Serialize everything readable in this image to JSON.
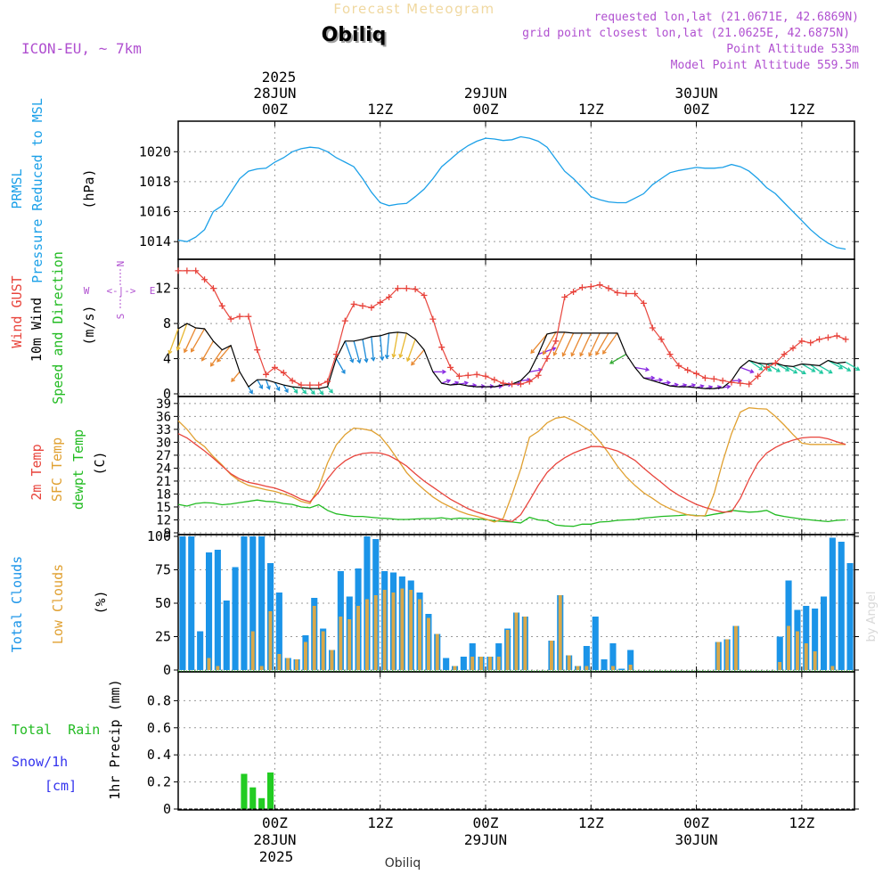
{
  "header": {
    "title": "Forecast Meteogram",
    "station": "Obiliq",
    "model": "ICON-EU, ~ 7km",
    "requested": "requested lon,lat (21.0671E, 42.6869N)",
    "gridpoint": "grid point closest lon,lat (21.0625E, 42.6875N)",
    "alt": "Point Altitude 533m",
    "model_alt": "Model Point Altitude 559.5m",
    "credit": "by Angel",
    "footer_station": "Obiliq"
  },
  "time_axis": {
    "top_year": "2025",
    "bottom_year": "2025",
    "ticks": [
      {
        "hour": 0,
        "label": "00Z",
        "date": "28JUN"
      },
      {
        "hour": 12,
        "label": "12Z",
        "date": ""
      },
      {
        "hour": 24,
        "label": "00Z",
        "date": "29JUN"
      },
      {
        "hour": 36,
        "label": "12Z",
        "date": ""
      },
      {
        "hour": 48,
        "label": "00Z",
        "date": "30JUN"
      },
      {
        "hour": 60,
        "label": "12Z",
        "date": ""
      }
    ],
    "range_hours": [
      -11,
      66
    ]
  },
  "panel_labels": {
    "pressure": [
      "PRMSL",
      "Pressure Reduced to MSL"
    ],
    "pressure_unit": "(hPa)",
    "wind_gust": "Wind GUST",
    "wind_10m": "10m Wind",
    "wind_speed_dir": "Speed and Direction",
    "wind_unit": "(m/s)",
    "compass": {
      "n": "N",
      "s": "S",
      "w": "W",
      "e": "E",
      "arrow": "<-|->"
    },
    "temp_2m": "2m Temp",
    "temp_sfc": "SFC Temp",
    "temp_dew": "dewpt Temp",
    "temp_unit": "(C)",
    "total_clouds": "Total Clouds",
    "low_clouds": "Low Clouds",
    "cloud_unit": "(%)",
    "precip": "1hr Precip (mm)",
    "total_rain": "Total  Rain",
    "snow": "Snow/1h",
    "snow_unit": "[cm]"
  },
  "colors": {
    "pressure": "#1ba0e8",
    "gust": "#e8443c",
    "wind": "#000000",
    "temp_2m": "#e8443c",
    "temp_sfc": "#e0a030",
    "dewpt": "#22bb22",
    "total_clouds": "#1b94e8",
    "low_clouds": "#d9a84a",
    "rain": "#22cc22",
    "violet": "#b050d0",
    "label_green": "#22bb22",
    "label_blue": "#1b94e8",
    "label_orange": "#e0a030",
    "label_red": "#e8443c",
    "snow_label": "#3333ee"
  },
  "chart_data": [
    {
      "type": "line",
      "name": "pressure",
      "ylim": [
        1013,
        1021.8
      ],
      "yticks": [
        1014,
        1016,
        1018,
        1020
      ],
      "x": [
        -11,
        -10,
        -9,
        -8,
        -7,
        -6,
        -5,
        -4,
        -3,
        -2,
        -1,
        0,
        1,
        2,
        3,
        4,
        5,
        6,
        7,
        8,
        9,
        10,
        11,
        12,
        13,
        14,
        15,
        16,
        17,
        18,
        19,
        20,
        21,
        22,
        23,
        24,
        25,
        26,
        27,
        28,
        29,
        30,
        31,
        32,
        33,
        34,
        35,
        36,
        37,
        38,
        39,
        40,
        41,
        42,
        43,
        44,
        45,
        46,
        47,
        48,
        49,
        50,
        51,
        52,
        53,
        54,
        55,
        56,
        57,
        58,
        59,
        60,
        61,
        62,
        63,
        64,
        65
      ],
      "values": [
        1014.1,
        1014.0,
        1014.3,
        1014.8,
        1016.0,
        1016.4,
        1017.3,
        1018.2,
        1018.7,
        1018.85,
        1018.9,
        1019.3,
        1019.6,
        1020.0,
        1020.2,
        1020.3,
        1020.25,
        1020.0,
        1019.6,
        1019.3,
        1019.0,
        1018.2,
        1017.3,
        1016.6,
        1016.4,
        1016.5,
        1016.55,
        1017.0,
        1017.5,
        1018.2,
        1019.0,
        1019.5,
        1020.0,
        1020.4,
        1020.7,
        1020.9,
        1020.85,
        1020.75,
        1020.8,
        1021.0,
        1020.9,
        1020.7,
        1020.3,
        1019.5,
        1018.7,
        1018.2,
        1017.6,
        1017.0,
        1016.8,
        1016.65,
        1016.6,
        1016.6,
        1016.9,
        1017.2,
        1017.8,
        1018.2,
        1018.6,
        1018.75,
        1018.85,
        1018.95,
        1018.9,
        1018.9,
        1018.95,
        1019.15,
        1019.0,
        1018.7,
        1018.2,
        1017.6,
        1017.2,
        1016.6,
        1016.0,
        1015.4,
        1014.8,
        1014.3,
        1013.9,
        1013.6,
        1013.5
      ]
    },
    {
      "type": "line",
      "name": "wind",
      "ylim": [
        0,
        15
      ],
      "yticks": [
        0,
        4,
        8,
        12
      ],
      "gust": {
        "x": [
          -11,
          -10,
          -9,
          -8,
          -7,
          -6,
          -5,
          -4,
          -3,
          -2,
          -1,
          0,
          1,
          2,
          3,
          4,
          5,
          6,
          7,
          8,
          9,
          10,
          11,
          12,
          13,
          14,
          15,
          16,
          17,
          18,
          19,
          20,
          21,
          22,
          23,
          24,
          25,
          26,
          27,
          28,
          29,
          30,
          31,
          32,
          33,
          34,
          35,
          36,
          37,
          38,
          39,
          40,
          41,
          42,
          43,
          44,
          45,
          46,
          47,
          48,
          49,
          50,
          51,
          52,
          53,
          54,
          55,
          56,
          57,
          58,
          59,
          60,
          61,
          62,
          63,
          64,
          65
        ],
        "values": [
          14,
          14,
          14,
          13,
          12,
          10,
          8.5,
          8.8,
          8.8,
          5,
          2.2,
          3,
          2.4,
          1.5,
          1,
          1,
          1,
          1.4,
          4.5,
          8.3,
          10.2,
          10,
          9.8,
          10.4,
          11,
          12,
          12,
          11.9,
          11.2,
          8.5,
          5.3,
          3,
          2,
          2.1,
          2.2,
          2,
          1.6,
          1.2,
          1.1,
          1.1,
          1.4,
          2.1,
          4,
          6,
          11,
          11.6,
          12.1,
          12.2,
          12.4,
          12,
          11.5,
          11.4,
          11.4,
          10.3,
          7.5,
          6.2,
          4.5,
          3.2,
          2.7,
          2.3,
          1.8,
          1.7,
          1.5,
          1.3,
          1.2,
          1.1,
          2,
          3,
          3.5,
          4.5,
          5.2,
          6,
          5.8,
          6.2,
          6.4,
          6.6,
          6.2
        ]
      },
      "speed": {
        "x": [
          -11,
          -10,
          -9,
          -8,
          -7,
          -6,
          -5,
          -4,
          -3,
          -2,
          -1,
          0,
          1,
          2,
          3,
          4,
          5,
          6,
          7,
          8,
          9,
          10,
          11,
          12,
          13,
          14,
          15,
          16,
          17,
          18,
          19,
          20,
          21,
          22,
          23,
          24,
          25,
          26,
          27,
          28,
          29,
          30,
          31,
          32,
          33,
          34,
          35,
          36,
          37,
          38,
          39,
          40,
          41,
          42,
          43,
          44,
          45,
          46,
          47,
          48,
          49,
          50,
          51,
          52,
          53,
          54,
          55,
          56,
          57,
          58,
          59,
          60,
          61,
          62,
          63,
          64,
          65
        ],
        "values": [
          7.4,
          8,
          7.5,
          7.4,
          6,
          5,
          5.5,
          2.5,
          0.8,
          1.6,
          1.6,
          1.3,
          1,
          0.8,
          0.7,
          0.6,
          0.6,
          0.8,
          4,
          6,
          6,
          6.2,
          6.5,
          6.6,
          6.9,
          7,
          6.9,
          6.2,
          5,
          2.5,
          1.2,
          1,
          1.1,
          0.9,
          0.8,
          0.8,
          0.8,
          1,
          1.1,
          1.5,
          2.5,
          4.5,
          6.8,
          7,
          7,
          6.9,
          6.9,
          6.9,
          6.9,
          6.9,
          6.9,
          4.5,
          3,
          1.8,
          1.5,
          1.2,
          0.9,
          0.8,
          0.8,
          0.7,
          0.6,
          0.6,
          0.7,
          1.5,
          3,
          3.8,
          3.5,
          3.4,
          3.5,
          3.2,
          3.1,
          3.4,
          3.3,
          3.2,
          3.8,
          3.5,
          3.6
        ]
      },
      "direction_deg": [
        20,
        20,
        25,
        30,
        30,
        35,
        40,
        40,
        330,
        330,
        340,
        330,
        330,
        320,
        320,
        320,
        325,
        320,
        330,
        340,
        345,
        350,
        355,
        355,
        5,
        10,
        15,
        20,
        40,
        270,
        250,
        250,
        260,
        265,
        265,
        265,
        265,
        265,
        265,
        265,
        260,
        250,
        40,
        30,
        25,
        25,
        25,
        25,
        25,
        30,
        35,
        60,
        280,
        270,
        265,
        265,
        260,
        255,
        255,
        255,
        255,
        255,
        260,
        270,
        290,
        305,
        300,
        300,
        300,
        300,
        300,
        300,
        305,
        300,
        300,
        300,
        300
      ]
    },
    {
      "type": "line",
      "name": "temperature",
      "ylim": [
        9,
        40
      ],
      "yticks": [
        9,
        12,
        15,
        18,
        21,
        24,
        27,
        30,
        33,
        36,
        39
      ],
      "x": [
        -11,
        -10,
        -9,
        -8,
        -7,
        -6,
        -5,
        -4,
        -3,
        -2,
        -1,
        0,
        1,
        2,
        3,
        4,
        5,
        6,
        7,
        8,
        9,
        10,
        11,
        12,
        13,
        14,
        15,
        16,
        17,
        18,
        19,
        20,
        21,
        22,
        23,
        24,
        25,
        26,
        27,
        28,
        29,
        30,
        31,
        32,
        33,
        34,
        35,
        36,
        37,
        38,
        39,
        40,
        41,
        42,
        43,
        44,
        45,
        46,
        47,
        48,
        49,
        50,
        51,
        52,
        53,
        54,
        55,
        56,
        57,
        58,
        59,
        60,
        61,
        62,
        63,
        64,
        65
      ],
      "t2m": [
        32,
        31,
        29.5,
        28,
        26.3,
        24.5,
        22.7,
        21.5,
        20.7,
        20.3,
        19.8,
        19.4,
        18.7,
        17.8,
        16.8,
        16.2,
        18.4,
        21.5,
        24,
        25.7,
        26.8,
        27.4,
        27.6,
        27.5,
        26.9,
        25.8,
        24.5,
        22.7,
        21,
        19.6,
        18.2,
        16.8,
        15.7,
        14.6,
        13.8,
        13.2,
        12.6,
        12,
        11.6,
        13.2,
        16.5,
        20,
        23,
        25,
        26.4,
        27.5,
        28.3,
        29,
        29,
        28.6,
        28,
        27,
        25.8,
        24,
        22.3,
        20.7,
        19,
        17.7,
        16.6,
        15.6,
        14.9,
        14.3,
        13.8,
        13.9,
        17,
        21.4,
        25.2,
        27.5,
        28.8,
        29.8,
        30.5,
        31,
        31.2,
        31.2,
        30.8,
        30.1,
        29.5
      ],
      "tsfc": [
        35,
        33,
        30.5,
        29,
        26.7,
        24.7,
        22.5,
        21,
        20,
        19.5,
        19,
        18.6,
        18,
        17.3,
        16.3,
        15.8,
        19.5,
        25.2,
        29.4,
        31.8,
        33.3,
        33.1,
        32.7,
        31.4,
        28.9,
        26,
        23,
        20.8,
        19,
        17.3,
        16,
        15,
        14,
        13.3,
        12.8,
        12.2,
        11.5,
        12.3,
        17.8,
        23.8,
        31.2,
        32.5,
        34.5,
        35.6,
        35.9,
        35,
        33.8,
        32.5,
        30.2,
        27.5,
        24.5,
        22,
        20,
        18.3,
        17,
        15.6,
        14.6,
        13.8,
        13.2,
        12.9,
        13,
        18,
        25.5,
        32,
        37,
        38,
        37.8,
        37.7,
        36,
        34,
        31.8,
        29.8,
        29.5,
        29.5,
        29.5,
        29.5,
        29.5
      ],
      "dewpt": [
        15.6,
        15.2,
        15.8,
        16,
        15.9,
        15.5,
        15.7,
        16,
        16.3,
        16.6,
        16.3,
        16.2,
        15.8,
        15.6,
        15,
        14.8,
        15.5,
        14.2,
        13.4,
        13.1,
        12.8,
        12.8,
        12.6,
        12.4,
        12.3,
        12.1,
        12.1,
        12.2,
        12.3,
        12.3,
        12.5,
        12.2,
        12.4,
        12.3,
        12.2,
        12.1,
        11.8,
        11.6,
        11.5,
        11.3,
        12.6,
        12,
        11.8,
        10.8,
        10.6,
        10.5,
        11,
        11,
        11.5,
        11.6,
        11.9,
        12,
        12.1,
        12.4,
        12.6,
        12.8,
        12.9,
        13,
        13.2,
        13,
        12.9,
        13.3,
        13.6,
        14.2,
        14,
        13.8,
        13.9,
        14.2,
        13.2,
        12.8,
        12.5,
        12.2,
        12,
        11.8,
        11.6,
        11.9,
        12
      ]
    },
    {
      "type": "bar",
      "name": "clouds",
      "ylim": [
        0,
        100
      ],
      "yticks": [
        0,
        25,
        50,
        75,
        100
      ],
      "x": [
        -11,
        -10,
        -9,
        -8,
        -7,
        -6,
        -5,
        -4,
        -3,
        -2,
        -1,
        0,
        1,
        2,
        3,
        4,
        5,
        6,
        7,
        8,
        9,
        10,
        11,
        12,
        13,
        14,
        15,
        16,
        17,
        18,
        19,
        20,
        21,
        22,
        23,
        24,
        25,
        26,
        27,
        28,
        29,
        30,
        31,
        32,
        33,
        34,
        35,
        36,
        37,
        38,
        39,
        40,
        41,
        42,
        43,
        44,
        45,
        46,
        47,
        48,
        49,
        50,
        51,
        52,
        53,
        54,
        55,
        56,
        57,
        58,
        59,
        60,
        61,
        62,
        63,
        64,
        65
      ],
      "total": [
        100,
        100,
        29,
        88,
        90,
        52,
        77,
        100,
        100,
        100,
        80,
        58,
        9,
        8,
        26,
        54,
        31,
        15,
        74,
        55,
        76,
        100,
        98,
        74,
        73,
        70,
        67,
        58,
        42,
        27,
        9,
        3,
        10,
        20,
        10,
        10,
        20,
        31,
        43,
        40,
        0,
        0,
        22,
        56,
        11,
        3,
        18,
        40,
        8,
        20,
        1,
        15,
        0,
        0,
        0,
        0,
        0,
        0,
        0,
        0,
        0,
        21,
        23,
        33,
        0,
        0,
        0,
        0,
        25,
        67,
        45,
        48,
        46,
        55,
        99,
        96,
        80
      ],
      "low": [
        0,
        0,
        0,
        9,
        3,
        0,
        0,
        0,
        29,
        3,
        44,
        12,
        9,
        8,
        21,
        48,
        29,
        15,
        40,
        38,
        48,
        53,
        56,
        60,
        58,
        61,
        60,
        53,
        39,
        27,
        0,
        3,
        0,
        10,
        10,
        10,
        10,
        30,
        43,
        40,
        0,
        0,
        22,
        56,
        11,
        3,
        3,
        0,
        0,
        3,
        0,
        4,
        0,
        0,
        0,
        0,
        0,
        0,
        0,
        0,
        0,
        21,
        23,
        33,
        0,
        0,
        0,
        0,
        6,
        33,
        29,
        20,
        14,
        0,
        3,
        0,
        0
      ]
    },
    {
      "type": "bar",
      "name": "precip",
      "ylim": [
        0,
        1.0
      ],
      "yticks": [
        0,
        0.2,
        0.4,
        0.6,
        0.8
      ],
      "x": [
        -4,
        -3,
        -2,
        -1
      ],
      "values": [
        0.26,
        0.16,
        0.08,
        0.27
      ]
    }
  ]
}
